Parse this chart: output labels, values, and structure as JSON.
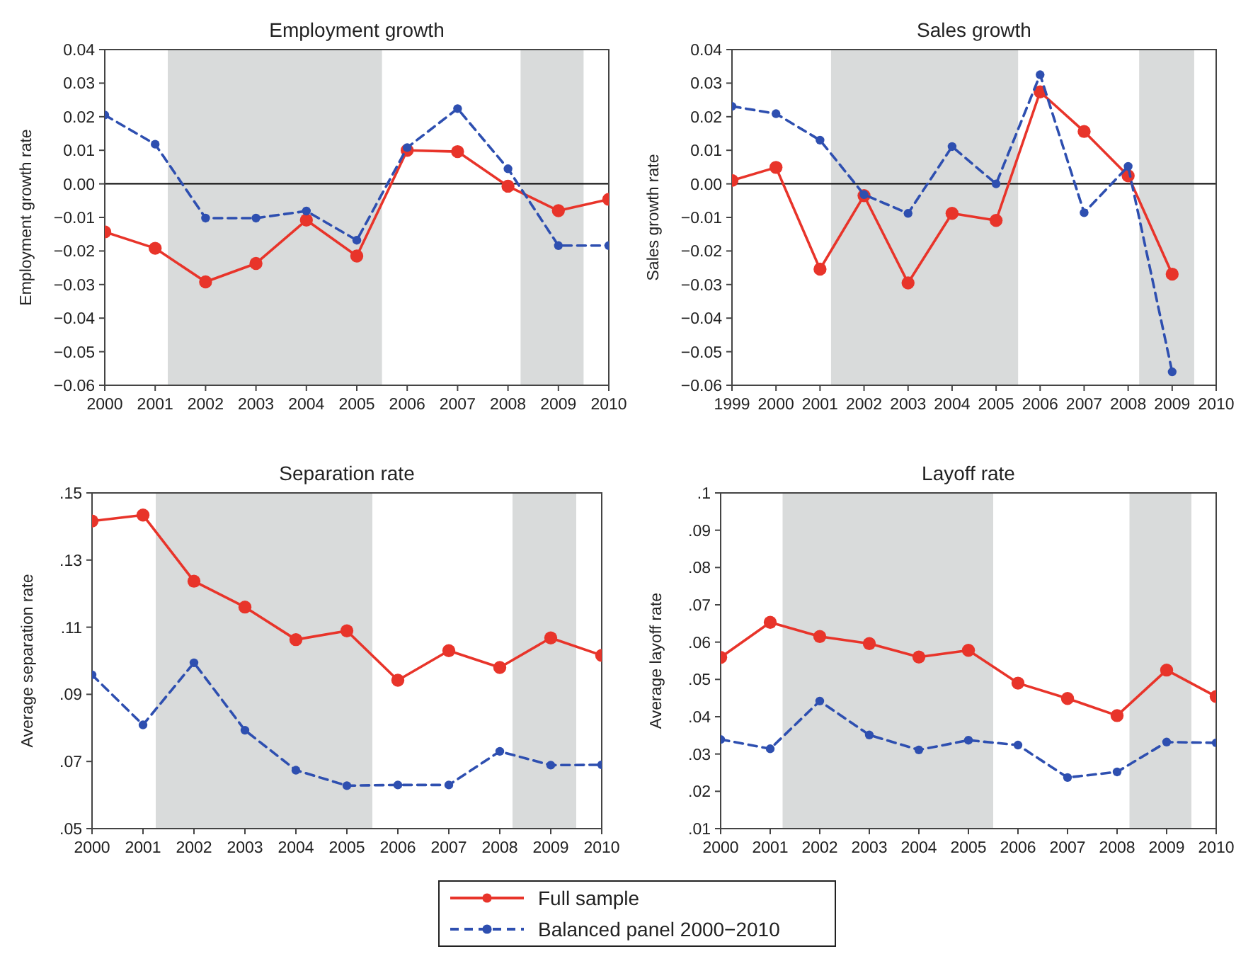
{
  "chart_data": [
    {
      "type": "line",
      "title": "Employment growth",
      "ylabel": "Employment growth rate",
      "x": [
        2000,
        2001,
        2002,
        2003,
        2004,
        2005,
        2006,
        2007,
        2008,
        2009,
        2010
      ],
      "xlim": [
        2000,
        2010
      ],
      "xticks": [
        2000,
        2001,
        2002,
        2003,
        2004,
        2005,
        2006,
        2007,
        2008,
        2009,
        2010
      ],
      "ylim": [
        -0.06,
        0.04
      ],
      "yticks": [
        {
          "value": -0.06,
          "label": "−0.06"
        },
        {
          "value": -0.05,
          "label": "−0.05"
        },
        {
          "value": -0.04,
          "label": "−0.04"
        },
        {
          "value": -0.03,
          "label": "−0.03"
        },
        {
          "value": -0.02,
          "label": "−0.02"
        },
        {
          "value": -0.01,
          "label": "−0.01"
        },
        {
          "value": 0,
          "label": "0.00"
        },
        {
          "value": 0.01,
          "label": "0.01"
        },
        {
          "value": 0.02,
          "label": "0.02"
        },
        {
          "value": 0.03,
          "label": "0.03"
        },
        {
          "value": 0.04,
          "label": "0.04"
        }
      ],
      "grid": false,
      "legend": "bottom",
      "marker": "circle",
      "ref_lines": [
        {
          "axis": "y",
          "value": 0,
          "color": "#000000"
        }
      ],
      "bands": [
        {
          "axis": "x",
          "from": 2001.25,
          "to": 2005.5,
          "color": "#d9dbdb"
        },
        {
          "axis": "x",
          "from": 2008.25,
          "to": 2009.5,
          "color": "#d9dbdb"
        }
      ],
      "series": [
        {
          "name": "Full sample",
          "color": "#e8342a",
          "line_style": "solid",
          "values": [
            -0.0143,
            -0.0192,
            -0.0292,
            -0.0237,
            -0.0108,
            -0.0215,
            0.01,
            0.0096,
            -0.0007,
            -0.008,
            -0.0046
          ]
        },
        {
          "name": "Balanced panel 2000−2010",
          "color": "#2e4fb0",
          "line_style": "dashed",
          "values": [
            0.0205,
            0.0118,
            -0.0102,
            -0.0102,
            -0.0081,
            -0.0168,
            0.0108,
            0.0224,
            0.0045,
            -0.0184,
            -0.0184
          ]
        }
      ]
    },
    {
      "type": "line",
      "title": "Sales growth",
      "ylabel": "Sales growth rate",
      "x": [
        1999,
        2000,
        2001,
        2002,
        2003,
        2004,
        2005,
        2006,
        2007,
        2008,
        2009
      ],
      "xlim": [
        1999,
        2010
      ],
      "xticks": [
        1999,
        2000,
        2001,
        2002,
        2003,
        2004,
        2005,
        2006,
        2007,
        2008,
        2009,
        2010
      ],
      "ylim": [
        -0.06,
        0.04
      ],
      "yticks": [
        {
          "value": -0.06,
          "label": "−0.06"
        },
        {
          "value": -0.05,
          "label": "−0.05"
        },
        {
          "value": -0.04,
          "label": "−0.04"
        },
        {
          "value": -0.03,
          "label": "−0.03"
        },
        {
          "value": -0.02,
          "label": "−0.02"
        },
        {
          "value": -0.01,
          "label": "−0.01"
        },
        {
          "value": 0,
          "label": "0.00"
        },
        {
          "value": 0.01,
          "label": "0.01"
        },
        {
          "value": 0.02,
          "label": "0.02"
        },
        {
          "value": 0.03,
          "label": "0.03"
        },
        {
          "value": 0.04,
          "label": "0.04"
        }
      ],
      "grid": false,
      "marker": "circle",
      "ref_lines": [
        {
          "axis": "y",
          "value": 0,
          "color": "#000000"
        }
      ],
      "bands": [
        {
          "axis": "x",
          "from": 2001.25,
          "to": 2005.5,
          "color": "#d9dbdb"
        },
        {
          "axis": "x",
          "from": 2008.25,
          "to": 2009.5,
          "color": "#d9dbdb"
        }
      ],
      "series": [
        {
          "color": "#e8342a",
          "line_style": "solid",
          "values": [
            0.001,
            0.0049,
            -0.0254,
            -0.0035,
            -0.0295,
            -0.0088,
            -0.0109,
            0.0274,
            0.0156,
            0.0024,
            -0.0269
          ]
        },
        {
          "color": "#2e4fb0",
          "line_style": "dashed",
          "values": [
            0.0231,
            0.0209,
            0.013,
            -0.0032,
            -0.0088,
            0.0111,
            0,
            0.0325,
            -0.0086,
            0.0052,
            -0.056
          ]
        }
      ]
    },
    {
      "type": "line",
      "title": "Separation rate",
      "ylabel": "Average separation rate",
      "x": [
        2000,
        2001,
        2002,
        2003,
        2004,
        2005,
        2006,
        2007,
        2008,
        2009,
        2010
      ],
      "xlim": [
        2000,
        2010
      ],
      "xticks": [
        2000,
        2001,
        2002,
        2003,
        2004,
        2005,
        2006,
        2007,
        2008,
        2009,
        2010
      ],
      "ylim": [
        0.05,
        0.15
      ],
      "yticks": [
        {
          "value": 0.05,
          "label": ".05"
        },
        {
          "value": 0.07,
          "label": ".07"
        },
        {
          "value": 0.09,
          "label": ".09"
        },
        {
          "value": 0.11,
          "label": ".11"
        },
        {
          "value": 0.13,
          "label": ".13"
        },
        {
          "value": 0.15,
          "label": ".15"
        }
      ],
      "grid": false,
      "marker": "circle",
      "bands": [
        {
          "axis": "x",
          "from": 2001.25,
          "to": 2005.5,
          "color": "#d9dbdb"
        },
        {
          "axis": "x",
          "from": 2008.25,
          "to": 2009.5,
          "color": "#d9dbdb"
        }
      ],
      "series": [
        {
          "color": "#e8342a",
          "line_style": "solid",
          "values": [
            0.1416,
            0.1434,
            0.1237,
            0.116,
            0.1063,
            0.1089,
            0.0942,
            0.103,
            0.098,
            0.1068,
            0.1016
          ]
        },
        {
          "color": "#2e4fb0",
          "line_style": "dashed",
          "values": [
            0.0958,
            0.0809,
            0.0994,
            0.0793,
            0.0674,
            0.0628,
            0.063,
            0.063,
            0.073,
            0.0689,
            0.069
          ]
        }
      ]
    },
    {
      "type": "line",
      "title": "Layoff rate",
      "ylabel": "Average layoff rate",
      "x": [
        2000,
        2001,
        2002,
        2003,
        2004,
        2005,
        2006,
        2007,
        2008,
        2009,
        2010
      ],
      "xlim": [
        2000,
        2010
      ],
      "xticks": [
        2000,
        2001,
        2002,
        2003,
        2004,
        2005,
        2006,
        2007,
        2008,
        2009,
        2010
      ],
      "ylim": [
        0.01,
        0.1
      ],
      "yticks": [
        {
          "value": 0.01,
          "label": ".01"
        },
        {
          "value": 0.02,
          "label": ".02"
        },
        {
          "value": 0.03,
          "label": ".03"
        },
        {
          "value": 0.04,
          "label": ".04"
        },
        {
          "value": 0.05,
          "label": ".05"
        },
        {
          "value": 0.06,
          "label": ".06"
        },
        {
          "value": 0.07,
          "label": ".07"
        },
        {
          "value": 0.08,
          "label": ".08"
        },
        {
          "value": 0.09,
          "label": ".09"
        },
        {
          "value": 0.1,
          "label": ".1"
        }
      ],
      "grid": false,
      "marker": "circle",
      "bands": [
        {
          "axis": "x",
          "from": 2001.25,
          "to": 2005.5,
          "color": "#d9dbdb"
        },
        {
          "axis": "x",
          "from": 2008.25,
          "to": 2009.5,
          "color": "#d9dbdb"
        }
      ],
      "series": [
        {
          "color": "#e8342a",
          "line_style": "solid",
          "values": [
            0.0559,
            0.0653,
            0.0615,
            0.0596,
            0.056,
            0.0578,
            0.049,
            0.0449,
            0.0403,
            0.0525,
            0.0454
          ]
        },
        {
          "color": "#2e4fb0",
          "line_style": "dashed",
          "values": [
            0.0339,
            0.0314,
            0.0442,
            0.0351,
            0.0311,
            0.0337,
            0.0324,
            0.0237,
            0.0252,
            0.0332,
            0.033
          ]
        }
      ]
    }
  ]
}
